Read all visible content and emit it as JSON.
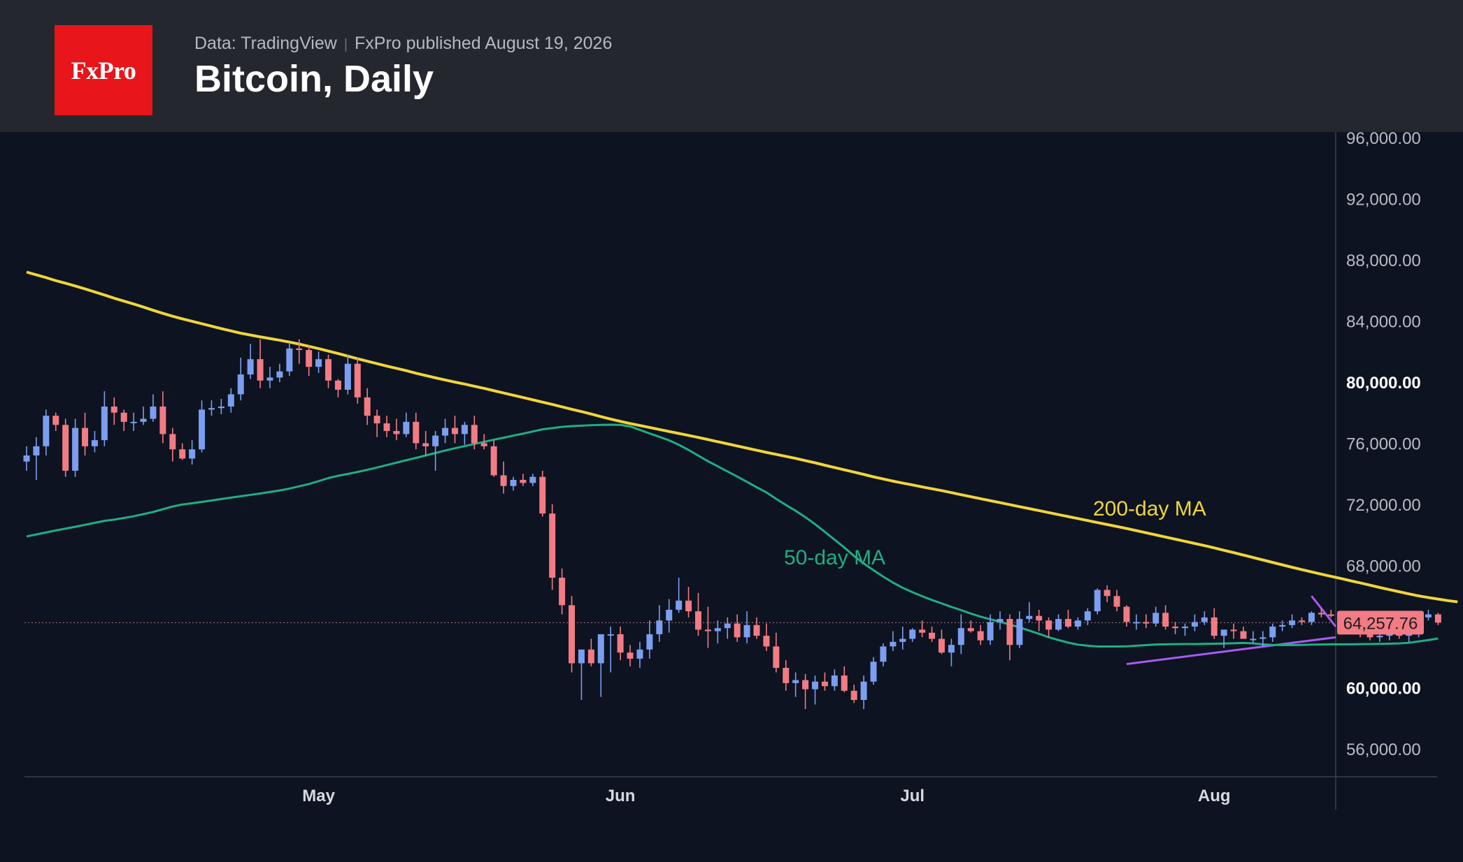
{
  "header": {
    "logo_text": "FxPro",
    "source": "Data: TradingView",
    "published": "FxPro published August 19, 2026",
    "title": "Bitcoin, Daily"
  },
  "chart_data": {
    "type": "candlestick",
    "title": "Bitcoin, Daily",
    "ylim": [
      54000,
      96500
    ],
    "y_ticks": [
      56000,
      60000,
      64000,
      68000,
      72000,
      76000,
      80000,
      84000,
      88000,
      92000,
      96000
    ],
    "y_tick_labels": [
      "56,000.00",
      "60,000.00",
      "",
      "68,000.00",
      "72,000.00",
      "76,000.00",
      "80,000.00",
      "84,000.00",
      "88,000.00",
      "92,000.00",
      "96,000.00"
    ],
    "x_tick_labels": [
      {
        "label": "May",
        "day": 30
      },
      {
        "label": "Jun",
        "day": 61
      },
      {
        "label": "Jul",
        "day": 91
      },
      {
        "label": "Aug",
        "day": 122
      }
    ],
    "last_price": 64257.76,
    "last_price_label": "64,257.76",
    "colors": {
      "up": "#7b9ef0",
      "down": "#f27b84",
      "ma50": "#1fae85",
      "ma200": "#f0d63a",
      "trend": "#a95af0",
      "price_tag": "#f27b84"
    },
    "candles_open": [
      74800,
      75200,
      75800,
      77800,
      77200,
      74200,
      77000,
      75800,
      76200,
      78400,
      78000,
      77400,
      77400,
      77600,
      78400,
      76600,
      75600,
      75000,
      75600,
      78200,
      78300,
      78400,
      79200,
      80500,
      81500,
      80100,
      80300,
      80700,
      82200,
      82100,
      81000,
      81500,
      80100,
      79500,
      81200,
      79000,
      77800,
      77300,
      76800,
      76600,
      77400,
      76000,
      75800,
      76500,
      77000,
      76600,
      77200,
      76000,
      75800,
      73900,
      73200,
      73600,
      73400,
      73800,
      71400,
      67200,
      65400,
      61600,
      62500,
      61600,
      63500,
      63500,
      62300,
      61900,
      62500,
      63500,
      64400,
      65100,
      65700,
      65000,
      63800,
      63700,
      63900,
      64200,
      63300,
      64100,
      63400,
      62700,
      61300,
      60300,
      60500,
      59900,
      60400,
      60100,
      60800,
      59800,
      59200,
      60400,
      61700,
      62700,
      63000,
      63200,
      63800,
      63600,
      63200,
      62300,
      62800,
      63900,
      63700,
      63100,
      64300,
      64500,
      62800,
      64500,
      64700,
      64400,
      63800,
      64500,
      64000,
      64400,
      65000,
      66400,
      66000,
      65300,
      64300,
      64300,
      64200,
      64900,
      64000,
      63900,
      64000,
      64300,
      64600,
      63400,
      63800,
      63700,
      63200,
      63200,
      63300,
      64000,
      64100,
      64400,
      64300,
      64900,
      64800,
      64700,
      64500,
      63700,
      63500,
      63300,
      63400,
      63600,
      63400,
      63500,
      64600,
      64800
    ],
    "candles_close": [
      75200,
      75800,
      77800,
      77200,
      74200,
      77000,
      75800,
      76200,
      78400,
      78000,
      77400,
      77400,
      77600,
      78400,
      76600,
      75600,
      75000,
      75600,
      78200,
      78300,
      78400,
      79200,
      80500,
      81500,
      80100,
      80300,
      80700,
      82200,
      82100,
      81000,
      81500,
      80100,
      79500,
      81200,
      79000,
      77800,
      77300,
      76800,
      76600,
      77400,
      76000,
      75800,
      76500,
      77000,
      76600,
      77200,
      76000,
      75800,
      73900,
      73200,
      73600,
      73400,
      73800,
      71400,
      67200,
      65400,
      61600,
      62500,
      61600,
      63500,
      63500,
      62300,
      61900,
      62500,
      63500,
      64400,
      65100,
      65700,
      65000,
      63800,
      63700,
      63900,
      64200,
      63300,
      64100,
      63400,
      62700,
      61300,
      60300,
      60500,
      59900,
      60400,
      60100,
      60800,
      59800,
      59200,
      60400,
      61700,
      62700,
      63000,
      63200,
      63800,
      63600,
      63200,
      62300,
      62800,
      63900,
      63700,
      63100,
      64300,
      64500,
      62800,
      64500,
      64700,
      64400,
      63800,
      64500,
      64000,
      64400,
      65000,
      66400,
      66000,
      65300,
      64300,
      64300,
      64200,
      64900,
      64000,
      63900,
      64000,
      64300,
      64600,
      63400,
      63800,
      63700,
      63200,
      63200,
      63300,
      64000,
      64100,
      64400,
      64300,
      64900,
      64800,
      64700,
      64500,
      63700,
      63500,
      63300,
      63400,
      63600,
      63400,
      63500,
      64600,
      64800,
      64257.76
    ],
    "candles_high": [
      75800,
      76400,
      78200,
      78000,
      77600,
      77600,
      78000,
      76800,
      79400,
      79000,
      78200,
      78000,
      78400,
      79200,
      79400,
      77000,
      76000,
      76200,
      78800,
      78800,
      78900,
      79600,
      81600,
      82500,
      82800,
      81000,
      81200,
      82600,
      82800,
      82400,
      82000,
      81800,
      80200,
      81800,
      81600,
      79600,
      78200,
      77800,
      77600,
      78000,
      78000,
      76800,
      76800,
      77600,
      77800,
      77400,
      77800,
      76600,
      76200,
      74800,
      73800,
      74000,
      74000,
      74200,
      72000,
      67800,
      66000,
      62200,
      63200,
      63500,
      64000,
      64000,
      62800,
      63000,
      64400,
      65400,
      65800,
      67200,
      66600,
      66200,
      65300,
      64400,
      64600,
      64800,
      65000,
      64600,
      64200,
      63600,
      61800,
      61000,
      60900,
      60800,
      61000,
      61200,
      61400,
      60200,
      60800,
      62000,
      62900,
      63700,
      64000,
      63900,
      64400,
      64000,
      63800,
      63200,
      64800,
      64400,
      64100,
      64800,
      65000,
      64800,
      65000,
      65600,
      65100,
      64600,
      64800,
      65100,
      64600,
      65200,
      66500,
      66700,
      66400,
      65400,
      64800,
      64800,
      65300,
      65400,
      64300,
      64200,
      64800,
      65000,
      65200,
      63800,
      64200,
      64000,
      63700,
      63700,
      64200,
      64400,
      64800,
      64600,
      65000,
      65200,
      65100,
      65000,
      64800,
      64100,
      63900,
      63700,
      63800,
      63800,
      63800,
      64900,
      65100,
      64900
    ],
    "candles_low": [
      74200,
      73600,
      75200,
      76800,
      73800,
      73800,
      75200,
      75400,
      75800,
      77200,
      76800,
      76800,
      77200,
      77400,
      76000,
      74800,
      74900,
      74600,
      75400,
      77800,
      77900,
      78000,
      78800,
      80200,
      79600,
      79600,
      80000,
      80400,
      81200,
      80400,
      80600,
      79600,
      79000,
      79200,
      78600,
      77200,
      76400,
      76400,
      76200,
      76400,
      75600,
      75200,
      74200,
      76000,
      76000,
      75900,
      75600,
      75600,
      73800,
      72700,
      72900,
      73200,
      73200,
      71200,
      66400,
      64800,
      61000,
      59200,
      61400,
      59400,
      61000,
      61800,
      61400,
      61300,
      61900,
      63000,
      63600,
      64900,
      64600,
      63400,
      62600,
      62900,
      63200,
      63000,
      62900,
      63200,
      62400,
      61000,
      59800,
      59400,
      58600,
      58900,
      59800,
      59800,
      59700,
      59000,
      58600,
      60200,
      61400,
      62400,
      62500,
      63000,
      63300,
      63000,
      62200,
      61400,
      62200,
      63600,
      62800,
      62800,
      63800,
      61800,
      62600,
      64300,
      63700,
      63300,
      63700,
      63900,
      63800,
      64100,
      64800,
      65600,
      65000,
      64000,
      63800,
      63900,
      64000,
      63800,
      63500,
      63400,
      63700,
      64100,
      63200,
      62600,
      63200,
      63400,
      62900,
      62700,
      63000,
      63700,
      63900,
      64100,
      64100,
      64600,
      64600,
      64400,
      63500,
      63300,
      63100,
      63000,
      63100,
      63200,
      63000,
      63300,
      64400,
      64100
    ],
    "ma50": [
      69900,
      70030,
      70160,
      70290,
      70410,
      70530,
      70660,
      70790,
      70920,
      71000,
      71110,
      71220,
      71360,
      71500,
      71680,
      71860,
      71990,
      72070,
      72160,
      72250,
      72350,
      72440,
      72530,
      72620,
      72710,
      72810,
      72910,
      73030,
      73180,
      73330,
      73520,
      73720,
      73870,
      73990,
      74120,
      74260,
      74410,
      74570,
      74730,
      74890,
      75040,
      75200,
      75360,
      75520,
      75670,
      75810,
      75950,
      76090,
      76230,
      76360,
      76500,
      76630,
      76770,
      76910,
      76990,
      77070,
      77120,
      77150,
      77180,
      77200,
      77210,
      77200,
      77100,
      76870,
      76640,
      76420,
      76190,
      75900,
      75560,
      75190,
      74820,
      74490,
      74150,
      73820,
      73470,
      73120,
      72780,
      72360,
      71960,
      71580,
      71160,
      70700,
      70200,
      69690,
      69180,
      68620,
      68130,
      67690,
      67270,
      66880,
      66540,
      66250,
      65990,
      65740,
      65520,
      65290,
      65080,
      64850,
      64650,
      64480,
      64310,
      64140,
      63950,
      63740,
      63530,
      63300,
      63120,
      62950,
      62820,
      62750,
      62700,
      62700,
      62700,
      62710,
      62750,
      62790,
      62830,
      62840,
      62850,
      62860,
      62860,
      62870,
      62880,
      62890,
      62910,
      62930,
      62900,
      62840,
      62800,
      62790,
      62790,
      62800,
      62820,
      62830,
      62840,
      62840,
      62840,
      62850,
      62860,
      62870,
      62880,
      62900,
      62940,
      63030,
      63120,
      63220
    ],
    "ma200": [
      87200,
      87020,
      86840,
      86640,
      86470,
      86290,
      86100,
      85900,
      85700,
      85490,
      85300,
      85110,
      84910,
      84700,
      84500,
      84310,
      84140,
      83980,
      83820,
      83660,
      83500,
      83350,
      83200,
      83080,
      82960,
      82850,
      82740,
      82620,
      82490,
      82340,
      82190,
      82030,
      81870,
      81700,
      81530,
      81370,
      81210,
      81050,
      80900,
      80750,
      80580,
      80430,
      80280,
      80140,
      80000,
      79870,
      79730,
      79590,
      79440,
      79290,
      79140,
      78990,
      78840,
      78690,
      78540,
      78380,
      78220,
      78070,
      77910,
      77740,
      77580,
      77430,
      77290,
      77160,
      77030,
      76900,
      76770,
      76640,
      76510,
      76380,
      76240,
      76100,
      75960,
      75820,
      75680,
      75540,
      75400,
      75270,
      75140,
      75010,
      74860,
      74720,
      74560,
      74410,
      74260,
      74110,
      73960,
      73800,
      73660,
      73520,
      73390,
      73270,
      73140,
      73020,
      72900,
      72770,
      72630,
      72500,
      72370,
      72240,
      72110,
      71980,
      71850,
      71720,
      71590,
      71460,
      71330,
      71200,
      71070,
      70940,
      70810,
      70680,
      70550,
      70420,
      70280,
      70140,
      70000,
      69860,
      69720,
      69580,
      69440,
      69300,
      69150,
      68990,
      68840,
      68680,
      68520,
      68360,
      68200,
      68040,
      67880,
      67730,
      67580,
      67430,
      67290,
      67150,
      67000,
      66860,
      66710,
      66560,
      66420,
      66280,
      66140,
      66010,
      65900,
      65800,
      65700,
      65620
    ],
    "trendlines": [
      {
        "from": {
          "day": 132,
          "price": 66000
        },
        "to": {
          "day": 211,
          "price": 64000
        }
      },
      {
        "from": {
          "day": 113,
          "price": 61550
        },
        "to": {
          "day": 211,
          "price": 63300
        }
      }
    ],
    "annotations": [
      {
        "text": "200-day MA",
        "color": "#f0d63a"
      },
      {
        "text": "50-day MA",
        "color": "#1fae85"
      }
    ]
  }
}
